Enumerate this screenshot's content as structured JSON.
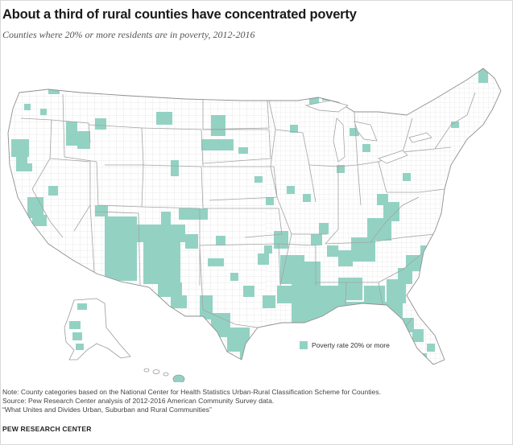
{
  "title": "About a third of rural counties have concentrated poverty",
  "subtitle": "Counties where 20% or more residents are in poverty, 2012-2016",
  "legend": {
    "label": "Poverty rate 20% or more",
    "color": "#93d2c3"
  },
  "colors": {
    "highlight": "#93d2c3",
    "county_border": "#cfcfcf",
    "state_border": "#9a9a9a",
    "land": "#ffffff"
  },
  "notes": [
    "Note: County categories based on the National Center for Health Statistics Urban-Rural Classification Scheme for Counties.",
    "Source: Pew Research Center analysis of 2012-2016 American Community Survey data.",
    "“What Unites and Divides Urban, Suburban and Rural Communities”"
  ],
  "brand": "PEW RESEARCH CENTER"
}
